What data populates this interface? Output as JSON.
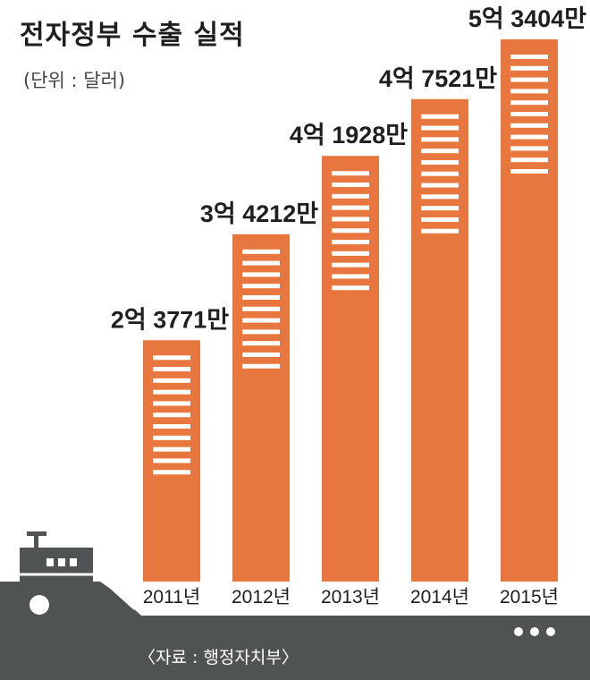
{
  "chart_data": {
    "type": "bar",
    "title": "전자정부 수출 실적",
    "unit_note": "(단위 : 달러)",
    "categories": [
      "2011년",
      "2012년",
      "2013년",
      "2014년",
      "2015년"
    ],
    "values": [
      237710000,
      342120000,
      419280000,
      475210000,
      534040000
    ],
    "value_labels": [
      "2억 3771만",
      "3억 4212만",
      "4억 1928만",
      "4억 7521만",
      "5억 3404만"
    ],
    "ylim": [
      0,
      534040000
    ],
    "bar_color": "#E8773F",
    "source": "〈자료 : 행정자치부〉"
  },
  "colors": {
    "ship_hull": "#4F5354",
    "ship_deck": "#5E6263",
    "window": "#ffffff"
  }
}
